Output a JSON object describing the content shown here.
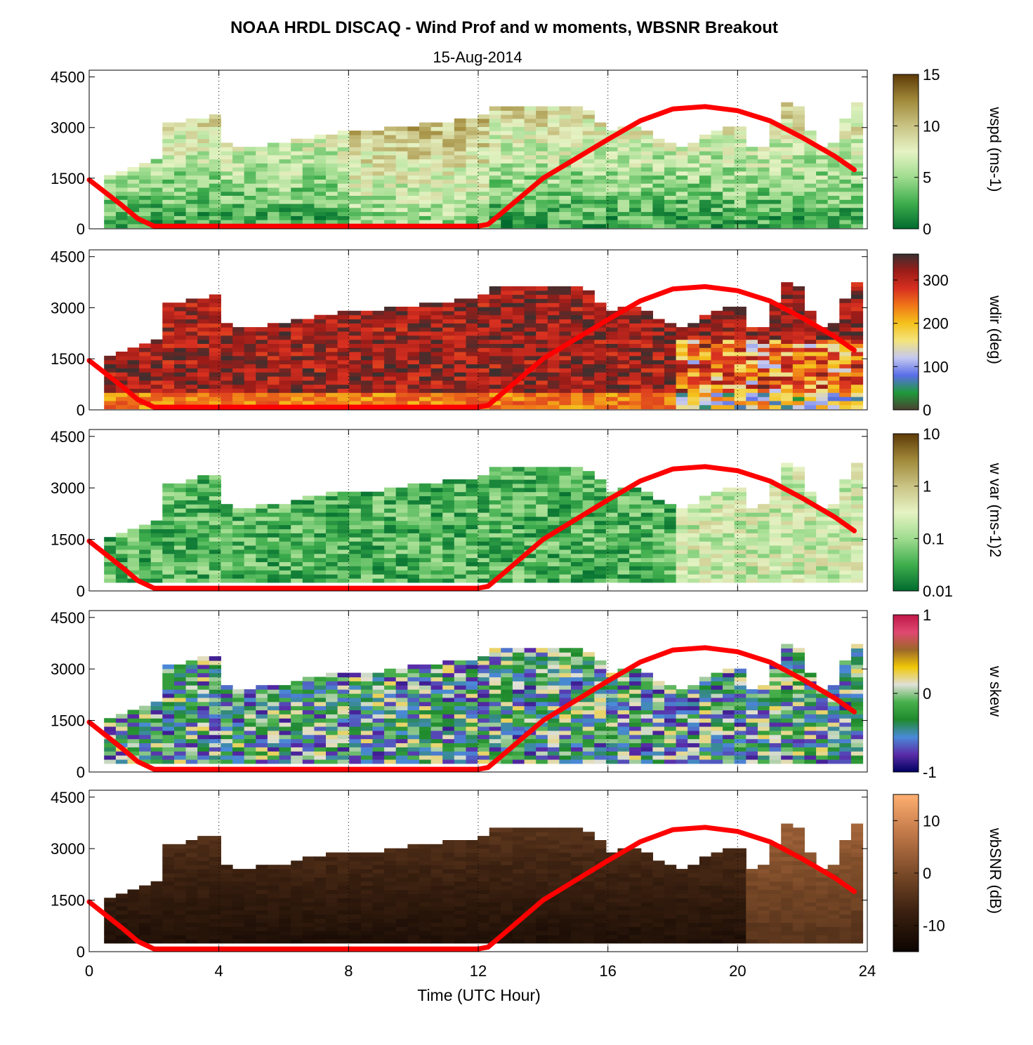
{
  "title": "NOAA HRDL DISCAQ - Wind Prof and w moments, WBSNR Breakout",
  "subtitle": "15-Aug-2014",
  "colors": {
    "overlay_line": "#ff0000",
    "grid": "#000000"
  },
  "chart_data": {
    "type": "heatmap",
    "x_axis": {
      "label": "Time (UTC Hour)",
      "range": [
        0,
        24
      ],
      "ticks": [
        0,
        4,
        8,
        12,
        16,
        20,
        24
      ],
      "tick_labels": [
        "0",
        "4",
        "8",
        "12",
        "16",
        "20",
        "24"
      ],
      "grid": "dotted vertical lines at 4, 8, 12, 16, 20"
    },
    "y_axis": {
      "range": [
        0,
        4700
      ],
      "ticks": [
        0,
        1500,
        3000,
        4500
      ],
      "tick_labels": [
        "0",
        "1500",
        "3000",
        "4500"
      ]
    },
    "overlay_line": {
      "color": "#ff0000",
      "x": [
        0,
        1,
        1.5,
        2,
        4,
        6,
        8,
        10,
        12,
        12.3,
        12.7,
        14,
        16,
        17,
        18,
        19,
        20,
        21,
        22,
        23,
        23.6
      ],
      "y": [
        1450,
        700,
        300,
        80,
        80,
        80,
        80,
        80,
        80,
        130,
        450,
        1500,
        2650,
        3200,
        3550,
        3620,
        3500,
        3200,
        2700,
        2150,
        1750
      ]
    },
    "panels": [
      {
        "colorbar_label": "wspd (ms-1)",
        "colorbar_ticks": [
          "15",
          "10",
          "5",
          "0"
        ],
        "colorbar_range": [
          0,
          15
        ],
        "colormap": [
          "#006b2e",
          "#3fae4d",
          "#9fdc8f",
          "#e6f3c4",
          "#c9c384",
          "#a0893a",
          "#5e3a08"
        ]
      },
      {
        "colorbar_label": "wdir (deg)",
        "colorbar_ticks": [
          "300",
          "200",
          "100",
          "0"
        ],
        "colorbar_range": [
          0,
          360
        ],
        "colormap": [
          "#4a4030",
          "#1f9a3c",
          "#5a6ee8",
          "#c4c8f0",
          "#f4e47c",
          "#f4c21c",
          "#f07818",
          "#d83020",
          "#9c1c18",
          "#3a3030"
        ]
      },
      {
        "colorbar_label": "w var (ms-1)2",
        "colorbar_ticks": [
          "10",
          "1",
          "0.1",
          "0.01"
        ],
        "colorbar_range": [
          0.01,
          10
        ],
        "colorbar_scale": "log",
        "colormap": [
          "#006b2e",
          "#3fae4d",
          "#9fdc8f",
          "#e6f3c4",
          "#c9c384",
          "#a0893a",
          "#5e3a08"
        ]
      },
      {
        "colorbar_label": "w skew",
        "colorbar_ticks": [
          "1",
          "0",
          "-1"
        ],
        "colorbar_range": [
          -1,
          1
        ],
        "colormap": [
          "#000060",
          "#5a2ca8",
          "#4a8ad8",
          "#1f8a2c",
          "#48b04c",
          "#e0e0d8",
          "#f0c808",
          "#9c6828",
          "#e04870",
          "#c01848"
        ]
      },
      {
        "colorbar_label": "wbSNR (dB)",
        "colorbar_ticks": [
          "10",
          "0",
          "-10"
        ],
        "colorbar_range": [
          -15,
          15
        ],
        "colormap": [
          "#0c0400",
          "#3a2010",
          "#7a4a28",
          "#c07848",
          "#ffb070"
        ]
      }
    ]
  }
}
